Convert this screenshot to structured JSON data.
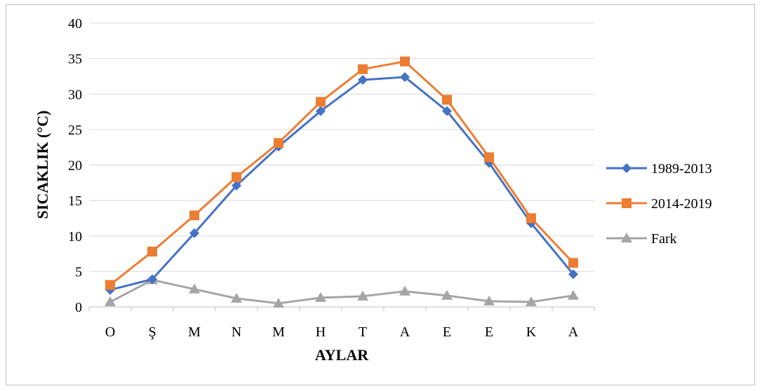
{
  "chart_data": {
    "type": "line",
    "title": "",
    "xlabel": "AYLAR",
    "ylabel": "SICAKLIK (°C)",
    "categories": [
      "O",
      "Ş",
      "M",
      "N",
      "M",
      "H",
      "T",
      "A",
      "E",
      "E",
      "K",
      "A"
    ],
    "ylim": [
      0,
      40
    ],
    "yticks": [
      0,
      5,
      10,
      15,
      20,
      25,
      30,
      35,
      40
    ],
    "grid": true,
    "legend_position": "right",
    "series": [
      {
        "name": "1989-2013",
        "color": "#4472c4",
        "marker": "diamond",
        "values": [
          2.4,
          3.9,
          10.4,
          17.1,
          22.6,
          27.6,
          32.0,
          32.4,
          27.6,
          20.3,
          11.8,
          4.6
        ]
      },
      {
        "name": "2014-2019",
        "color": "#ed7d31",
        "marker": "square",
        "values": [
          3.1,
          7.8,
          12.9,
          18.3,
          23.1,
          28.9,
          33.5,
          34.6,
          29.2,
          21.1,
          12.5,
          6.2
        ]
      },
      {
        "name": "Fark",
        "color": "#a5a5a5",
        "marker": "triangle",
        "values": [
          0.7,
          3.8,
          2.5,
          1.2,
          0.5,
          1.3,
          1.5,
          2.2,
          1.6,
          0.8,
          0.7,
          1.6
        ]
      }
    ]
  }
}
